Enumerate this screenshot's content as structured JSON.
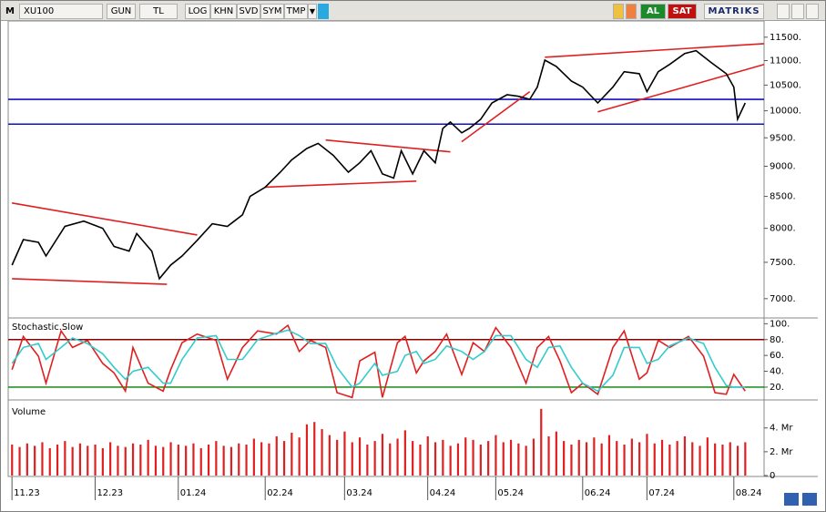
{
  "toolbar": {
    "symbol_icon": "M",
    "symbol": "XU100",
    "buttons": [
      "GUN",
      "TL",
      "LOG",
      "KHN",
      "SVD",
      "SYM",
      "TMP"
    ],
    "buy": "AL",
    "sell": "SAT",
    "brand": "MATRIKS"
  },
  "chart_data": [
    {
      "type": "line",
      "scale": "log",
      "color": "#000000",
      "x": [
        0,
        3,
        7,
        9,
        14,
        19,
        24,
        27,
        31,
        33,
        37,
        39,
        42,
        45,
        49,
        53,
        57,
        61,
        63,
        67,
        71,
        74,
        78,
        81,
        85,
        89,
        92,
        95,
        98,
        101,
        103,
        106,
        109,
        112,
        114,
        116,
        119,
        121,
        124,
        127,
        131,
        134,
        137,
        139,
        141,
        144,
        148,
        151,
        155,
        159,
        162,
        166,
        168,
        171,
        174,
        178,
        181,
        185,
        189,
        191,
        192,
        194
      ],
      "values": [
        7460,
        7830,
        7790,
        7590,
        8030,
        8110,
        8000,
        7730,
        7660,
        7920,
        7660,
        7270,
        7460,
        7590,
        7820,
        8070,
        8030,
        8210,
        8500,
        8650,
        8900,
        9110,
        9310,
        9400,
        9190,
        8900,
        9060,
        9270,
        8870,
        8800,
        9270,
        8870,
        9270,
        9060,
        9670,
        9790,
        9590,
        9670,
        9840,
        10150,
        10310,
        10280,
        10220,
        10460,
        11010,
        10880,
        10580,
        10460,
        10150,
        10460,
        10770,
        10730,
        10370,
        10770,
        10920,
        11150,
        11210,
        10960,
        10730,
        10460,
        9840,
        10150
      ],
      "xlim": [
        -1,
        199
      ],
      "ylim": [
        6760,
        11860
      ],
      "yticks": [
        {
          "value": 7000,
          "label": "7000."
        },
        {
          "value": 7500,
          "label": "7500."
        },
        {
          "value": 8000,
          "label": "8000."
        },
        {
          "value": 8500,
          "label": "8500."
        },
        {
          "value": 9000,
          "label": "9000."
        },
        {
          "value": 9500,
          "label": "9500."
        },
        {
          "value": 10000,
          "label": "10000."
        },
        {
          "value": 10500,
          "label": "10500."
        },
        {
          "value": 11000,
          "label": "11000."
        },
        {
          "value": 11500,
          "label": "11500."
        }
      ],
      "hlines": [
        {
          "value": 10220,
          "color": "#1010c0"
        },
        {
          "value": 9750,
          "color": "#1010c0"
        }
      ],
      "trendlines": [
        {
          "x": [
            0,
            49
          ],
          "values": [
            8394,
            7900
          ],
          "color": "#e02020"
        },
        {
          "x": [
            0,
            41
          ],
          "values": [
            7270,
            7194
          ],
          "color": "#e02020"
        },
        {
          "x": [
            67,
            107
          ],
          "values": [
            8650,
            8750
          ],
          "color": "#e02020"
        },
        {
          "x": [
            83,
            116
          ],
          "values": [
            9460,
            9250
          ],
          "color": "#e02020"
        },
        {
          "x": [
            119,
            137
          ],
          "values": [
            9430,
            10370
          ],
          "color": "#e02020"
        },
        {
          "x": [
            141,
            199
          ],
          "values": [
            11070,
            11360
          ],
          "color": "#e02020"
        },
        {
          "x": [
            155,
            199
          ],
          "values": [
            9980,
            10920
          ],
          "color": "#e02020"
        }
      ]
    },
    {
      "type": "line",
      "title": "Stochastic.Slow",
      "x": [
        0,
        3,
        7,
        9,
        13,
        16,
        20,
        24,
        27,
        30,
        32,
        36,
        40,
        42,
        45,
        49,
        54,
        57,
        61,
        65,
        70,
        73,
        76,
        79,
        83,
        86,
        90,
        92,
        96,
        98,
        102,
        104,
        107,
        109,
        112,
        115,
        119,
        122,
        125,
        128,
        132,
        136,
        139,
        142,
        145,
        148,
        151,
        155,
        159,
        162,
        166,
        168,
        171,
        174,
        179,
        183,
        186,
        189,
        191,
        194
      ],
      "series": [
        {
          "color": "#e02020",
          "values": [
            42,
            84,
            59,
            25,
            91,
            70,
            79,
            50,
            38,
            15,
            70,
            25,
            15,
            42,
            76,
            87,
            79,
            30,
            70,
            91,
            87,
            98,
            65,
            79,
            70,
            13,
            7,
            53,
            64,
            7,
            76,
            84,
            38,
            53,
            65,
            87,
            36,
            76,
            65,
            95,
            70,
            25,
            70,
            84,
            53,
            13,
            25,
            11,
            70,
            91,
            30,
            38,
            79,
            70,
            84,
            59,
            13,
            11,
            36,
            15
          ]
        },
        {
          "color": "#33cccc",
          "values": [
            50,
            70,
            75,
            55,
            70,
            82,
            75,
            62,
            45,
            30,
            40,
            45,
            25,
            25,
            55,
            82,
            85,
            55,
            55,
            80,
            88,
            92,
            85,
            75,
            75,
            45,
            20,
            25,
            50,
            35,
            40,
            60,
            65,
            50,
            55,
            72,
            65,
            55,
            65,
            85,
            85,
            55,
            45,
            70,
            72,
            45,
            25,
            15,
            35,
            70,
            70,
            50,
            55,
            72,
            82,
            75,
            45,
            22,
            20,
            20
          ]
        }
      ],
      "xlim": [
        -1,
        199
      ],
      "ylim": [
        5,
        105
      ],
      "yticks": [
        {
          "value": 20,
          "label": "20."
        },
        {
          "value": 40,
          "label": "40."
        },
        {
          "value": 60,
          "label": "60."
        },
        {
          "value": 80,
          "label": "80."
        },
        {
          "value": 100,
          "label": "100."
        }
      ],
      "levels": [
        {
          "value": 80,
          "color": "#8b0000"
        },
        {
          "value": 20,
          "color": "#008000"
        }
      ]
    },
    {
      "type": "bar",
      "title": "Volume",
      "color": "#e02020",
      "x": [
        0,
        2,
        4,
        6,
        8,
        10,
        12,
        14,
        16,
        18,
        20,
        22,
        24,
        26,
        28,
        30,
        32,
        34,
        36,
        38,
        40,
        42,
        44,
        46,
        48,
        50,
        52,
        54,
        56,
        58,
        60,
        62,
        64,
        66,
        68,
        70,
        72,
        74,
        76,
        78,
        80,
        82,
        84,
        86,
        88,
        90,
        92,
        94,
        96,
        98,
        100,
        102,
        104,
        106,
        108,
        110,
        112,
        114,
        116,
        118,
        120,
        122,
        124,
        126,
        128,
        130,
        132,
        134,
        136,
        138,
        140,
        142,
        144,
        146,
        148,
        150,
        152,
        154,
        156,
        158,
        160,
        162,
        164,
        166,
        168,
        170,
        172,
        174,
        176,
        178,
        180,
        182,
        184,
        186,
        188,
        190,
        192,
        194
      ],
      "values": [
        2.6,
        2.4,
        2.7,
        2.5,
        2.8,
        2.3,
        2.6,
        2.9,
        2.4,
        2.7,
        2.5,
        2.6,
        2.3,
        2.8,
        2.5,
        2.4,
        2.7,
        2.6,
        3.0,
        2.5,
        2.4,
        2.8,
        2.6,
        2.5,
        2.7,
        2.3,
        2.6,
        2.9,
        2.5,
        2.4,
        2.7,
        2.6,
        3.1,
        2.8,
        2.7,
        3.3,
        2.9,
        3.6,
        3.2,
        4.3,
        4.5,
        3.9,
        3.4,
        3.0,
        3.7,
        2.8,
        3.2,
        2.6,
        2.9,
        3.5,
        2.7,
        3.1,
        3.8,
        2.9,
        2.6,
        3.3,
        2.8,
        3.0,
        2.5,
        2.7,
        3.2,
        3.0,
        2.6,
        2.9,
        3.4,
        2.8,
        3.0,
        2.7,
        2.5,
        3.1,
        5.6,
        3.3,
        3.7,
        2.9,
        2.6,
        3.0,
        2.8,
        3.2,
        2.7,
        3.4,
        2.9,
        2.6,
        3.1,
        2.8,
        3.5,
        2.7,
        3.0,
        2.6,
        2.9,
        3.3,
        2.8,
        2.5,
        3.2,
        2.7,
        2.6,
        2.8,
        2.5,
        2.8
      ],
      "xlim": [
        -1,
        199
      ],
      "ylim": [
        0,
        6.2
      ],
      "yticks": [
        0,
        {
          "value": 2,
          "label": "2. Mr"
        },
        {
          "value": 4,
          "label": "4. Mr"
        }
      ],
      "xticks": [
        {
          "value": 0,
          "label": "11.23"
        },
        {
          "value": 22,
          "label": "12.23"
        },
        {
          "value": 44,
          "label": "01.24"
        },
        {
          "value": 67,
          "label": "02.24"
        },
        {
          "value": 88,
          "label": "03.24"
        },
        {
          "value": 110,
          "label": "04.24"
        },
        {
          "value": 128,
          "label": "05.24"
        },
        {
          "value": 151,
          "label": "06.24"
        },
        {
          "value": 168,
          "label": "07.24"
        },
        {
          "value": 191,
          "label": "08.24"
        }
      ]
    }
  ]
}
